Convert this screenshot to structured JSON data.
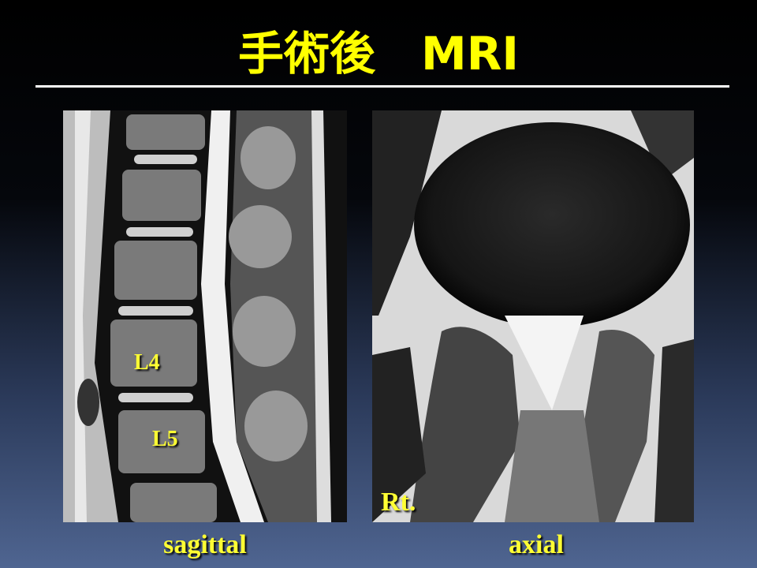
{
  "header": {
    "title": "手術後　MRI"
  },
  "images": [
    {
      "caption": "sagittal",
      "labels": [
        "L4",
        "L5"
      ]
    },
    {
      "caption": "axial",
      "labels": [
        "Rt."
      ]
    }
  ]
}
